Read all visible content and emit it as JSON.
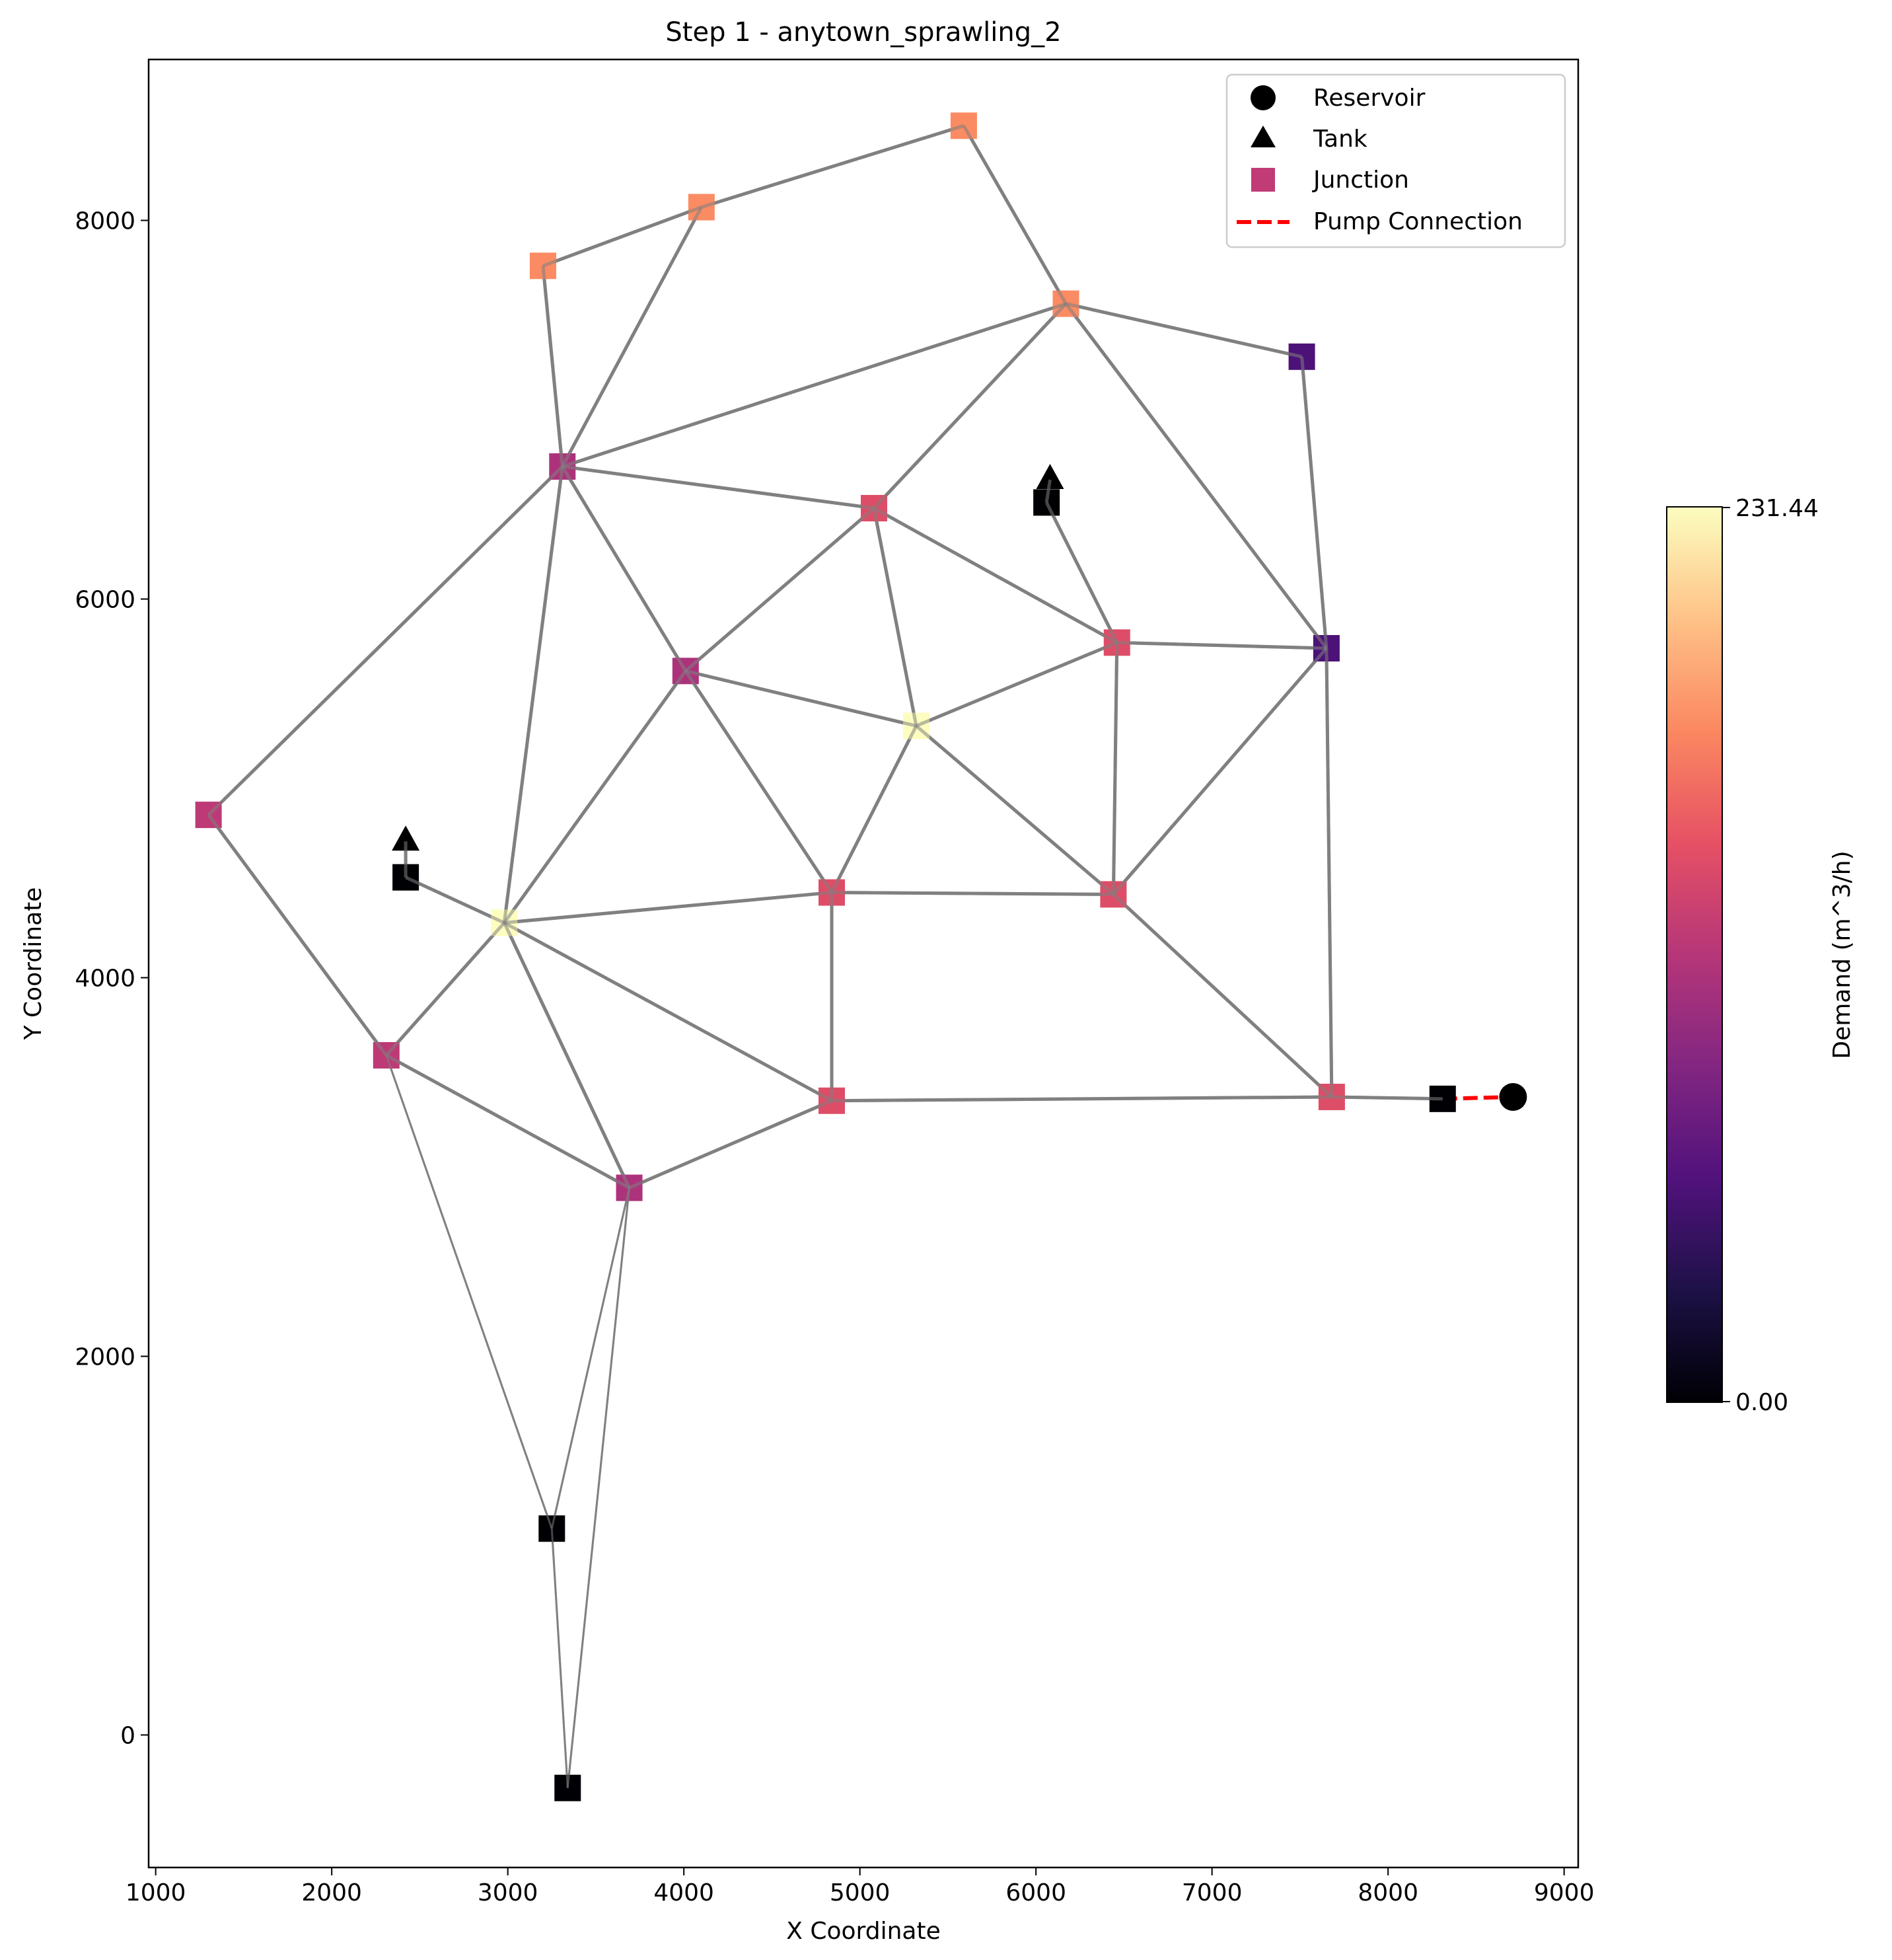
{
  "chart_data": {
    "type": "scatter",
    "title": "Step 1 - anytown_sprawling_2",
    "xlabel": "X Coordinate",
    "ylabel": "Y Coordinate",
    "xlim": [
      960,
      9080
    ],
    "ylim": [
      -700,
      8850
    ],
    "xticks": [
      1000,
      2000,
      3000,
      4000,
      5000,
      6000,
      7000,
      8000,
      9000
    ],
    "yticks": [
      0,
      2000,
      4000,
      6000,
      8000
    ],
    "grid": false,
    "legend_placement": "top-right",
    "legend": [
      {
        "label": "Reservoir",
        "marker": "circle",
        "color": "#000000"
      },
      {
        "label": "Tank",
        "marker": "triangle",
        "color": "#000000"
      },
      {
        "label": "Junction",
        "marker": "square",
        "color": "#c13b75"
      },
      {
        "label": "Pump Connection",
        "marker": "dashed-line",
        "color": "#ff0000"
      }
    ],
    "colorbar": {
      "label": "Demand (m^3/h)",
      "min": 0.0,
      "max": 231.44,
      "min_label": "0.00",
      "max_label": "231.44",
      "colormap": "magma",
      "stops": [
        "#000004",
        "#1d1147",
        "#51127c",
        "#822681",
        "#b63679",
        "#e65164",
        "#fb8861",
        "#fec287",
        "#fcfdbf"
      ]
    },
    "junctions": [
      {
        "id": "J1",
        "x": 5590,
        "y": 8500,
        "demand": 175
      },
      {
        "id": "J2",
        "x": 4100,
        "y": 8070,
        "demand": 175
      },
      {
        "id": "J3",
        "x": 3200,
        "y": 7760,
        "demand": 175
      },
      {
        "id": "J4",
        "x": 6170,
        "y": 7560,
        "demand": 175
      },
      {
        "id": "J5",
        "x": 7510,
        "y": 7280,
        "demand": 55
      },
      {
        "id": "J6",
        "x": 3310,
        "y": 6700,
        "demand": 110
      },
      {
        "id": "J7",
        "x": 5080,
        "y": 6480,
        "demand": 140
      },
      {
        "id": "J8",
        "x": 6460,
        "y": 5770,
        "demand": 140
      },
      {
        "id": "J9",
        "x": 7650,
        "y": 5740,
        "demand": 55
      },
      {
        "id": "J10",
        "x": 4010,
        "y": 5620,
        "demand": 110
      },
      {
        "id": "J11",
        "x": 5320,
        "y": 5330,
        "demand": 231.44
      },
      {
        "id": "J12",
        "x": 1300,
        "y": 4860,
        "demand": 120
      },
      {
        "id": "J13",
        "x": 2420,
        "y": 4530,
        "demand": 0
      },
      {
        "id": "J14",
        "x": 4840,
        "y": 4450,
        "demand": 140
      },
      {
        "id": "J15",
        "x": 6440,
        "y": 4440,
        "demand": 140
      },
      {
        "id": "J16",
        "x": 2980,
        "y": 4290,
        "demand": 231.44
      },
      {
        "id": "J17",
        "x": 2310,
        "y": 3590,
        "demand": 120
      },
      {
        "id": "J18",
        "x": 7680,
        "y": 3370,
        "demand": 140
      },
      {
        "id": "J19",
        "x": 8310,
        "y": 3360,
        "demand": 0
      },
      {
        "id": "J20",
        "x": 4840,
        "y": 3350,
        "demand": 140
      },
      {
        "id": "J21",
        "x": 3690,
        "y": 2890,
        "demand": 110
      },
      {
        "id": "J22",
        "x": 3250,
        "y": 1090,
        "demand": 0
      },
      {
        "id": "J23",
        "x": 3340,
        "y": -280,
        "demand": 0
      },
      {
        "id": "J24",
        "x": 6060,
        "y": 6510,
        "demand": 0
      }
    ],
    "tanks": [
      {
        "id": "T1",
        "x": 2420,
        "y": 4720
      },
      {
        "id": "T2",
        "x": 6080,
        "y": 6630
      }
    ],
    "reservoirs": [
      {
        "id": "R1",
        "x": 8710,
        "y": 3370
      }
    ],
    "pipes": [
      [
        "J3",
        "J2"
      ],
      [
        "J2",
        "J1"
      ],
      [
        "J1",
        "J4"
      ],
      [
        "J4",
        "J5"
      ],
      [
        "J3",
        "J6"
      ],
      [
        "J2",
        "J6"
      ],
      [
        "J6",
        "J4"
      ],
      [
        "J4",
        "J7"
      ],
      [
        "J4",
        "J9"
      ],
      [
        "J5",
        "J9"
      ],
      [
        "J6",
        "J7"
      ],
      [
        "J6",
        "J10"
      ],
      [
        "J6",
        "J12"
      ],
      [
        "J6",
        "J16"
      ],
      [
        "J7",
        "J10"
      ],
      [
        "J7",
        "J11"
      ],
      [
        "J7",
        "J8"
      ],
      [
        "J8",
        "J9"
      ],
      [
        "J8",
        "J11"
      ],
      [
        "J8",
        "J15"
      ],
      [
        "J9",
        "J15"
      ],
      [
        "J9",
        "J18"
      ],
      [
        "J10",
        "J11"
      ],
      [
        "J10",
        "J16"
      ],
      [
        "J10",
        "J14"
      ],
      [
        "J11",
        "J14"
      ],
      [
        "J11",
        "J15"
      ],
      [
        "J12",
        "J17"
      ],
      [
        "J13",
        "T1"
      ],
      [
        "J13",
        "J16"
      ],
      [
        "J14",
        "J15"
      ],
      [
        "J14",
        "J16"
      ],
      [
        "J14",
        "J20"
      ],
      [
        "J15",
        "J18"
      ],
      [
        "J16",
        "J17"
      ],
      [
        "J16",
        "J20"
      ],
      [
        "J16",
        "J21"
      ],
      [
        "J17",
        "J21"
      ],
      [
        "J20",
        "J21"
      ],
      [
        "J20",
        "J18"
      ],
      [
        "J18",
        "J19"
      ],
      [
        "J24",
        "T2"
      ],
      [
        "J24",
        "J8"
      ]
    ],
    "thin_pipes": [
      [
        "J17",
        "J22"
      ],
      [
        "J22",
        "J21"
      ],
      [
        "J21",
        "J23"
      ],
      [
        "J22",
        "J23"
      ]
    ],
    "pump": [
      "J19",
      "R1"
    ]
  }
}
